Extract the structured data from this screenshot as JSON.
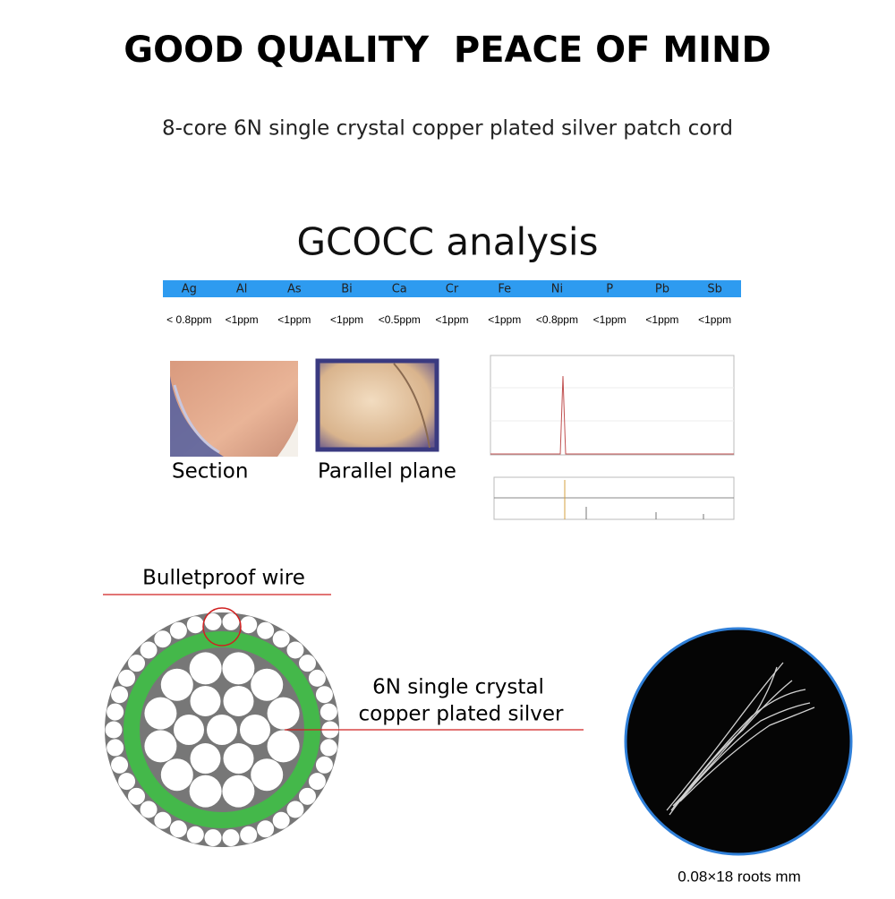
{
  "header": {
    "title": "GOOD QUALITY  PEACE OF MIND",
    "subtitle": "8-core 6N single crystal copper plated silver patch cord"
  },
  "analysis": {
    "title": "GCOCC analysis",
    "elements": [
      {
        "symbol": "Ag",
        "value": "< 0.8ppm"
      },
      {
        "symbol": "Al",
        "value": "<1ppm"
      },
      {
        "symbol": "As",
        "value": "<1ppm"
      },
      {
        "symbol": "Bi",
        "value": "<1ppm"
      },
      {
        "symbol": "Ca",
        "value": "<0.5ppm"
      },
      {
        "symbol": "Cr",
        "value": "<1ppm"
      },
      {
        "symbol": "Fe",
        "value": "<1ppm"
      },
      {
        "symbol": "Ni",
        "value": "<0.8ppm"
      },
      {
        "symbol": "P",
        "value": "<1ppm"
      },
      {
        "symbol": "Pb",
        "value": "<1ppm"
      },
      {
        "symbol": "Sb",
        "value": "<1ppm"
      }
    ],
    "images": [
      {
        "caption": "Section"
      },
      {
        "caption": "Parallel plane"
      }
    ]
  },
  "diagram": {
    "outer_label": "Bulletproof wire",
    "core_label": [
      "6N single crystal",
      "copper plated silver"
    ],
    "photo_caption": "0.08×18 roots mm"
  }
}
